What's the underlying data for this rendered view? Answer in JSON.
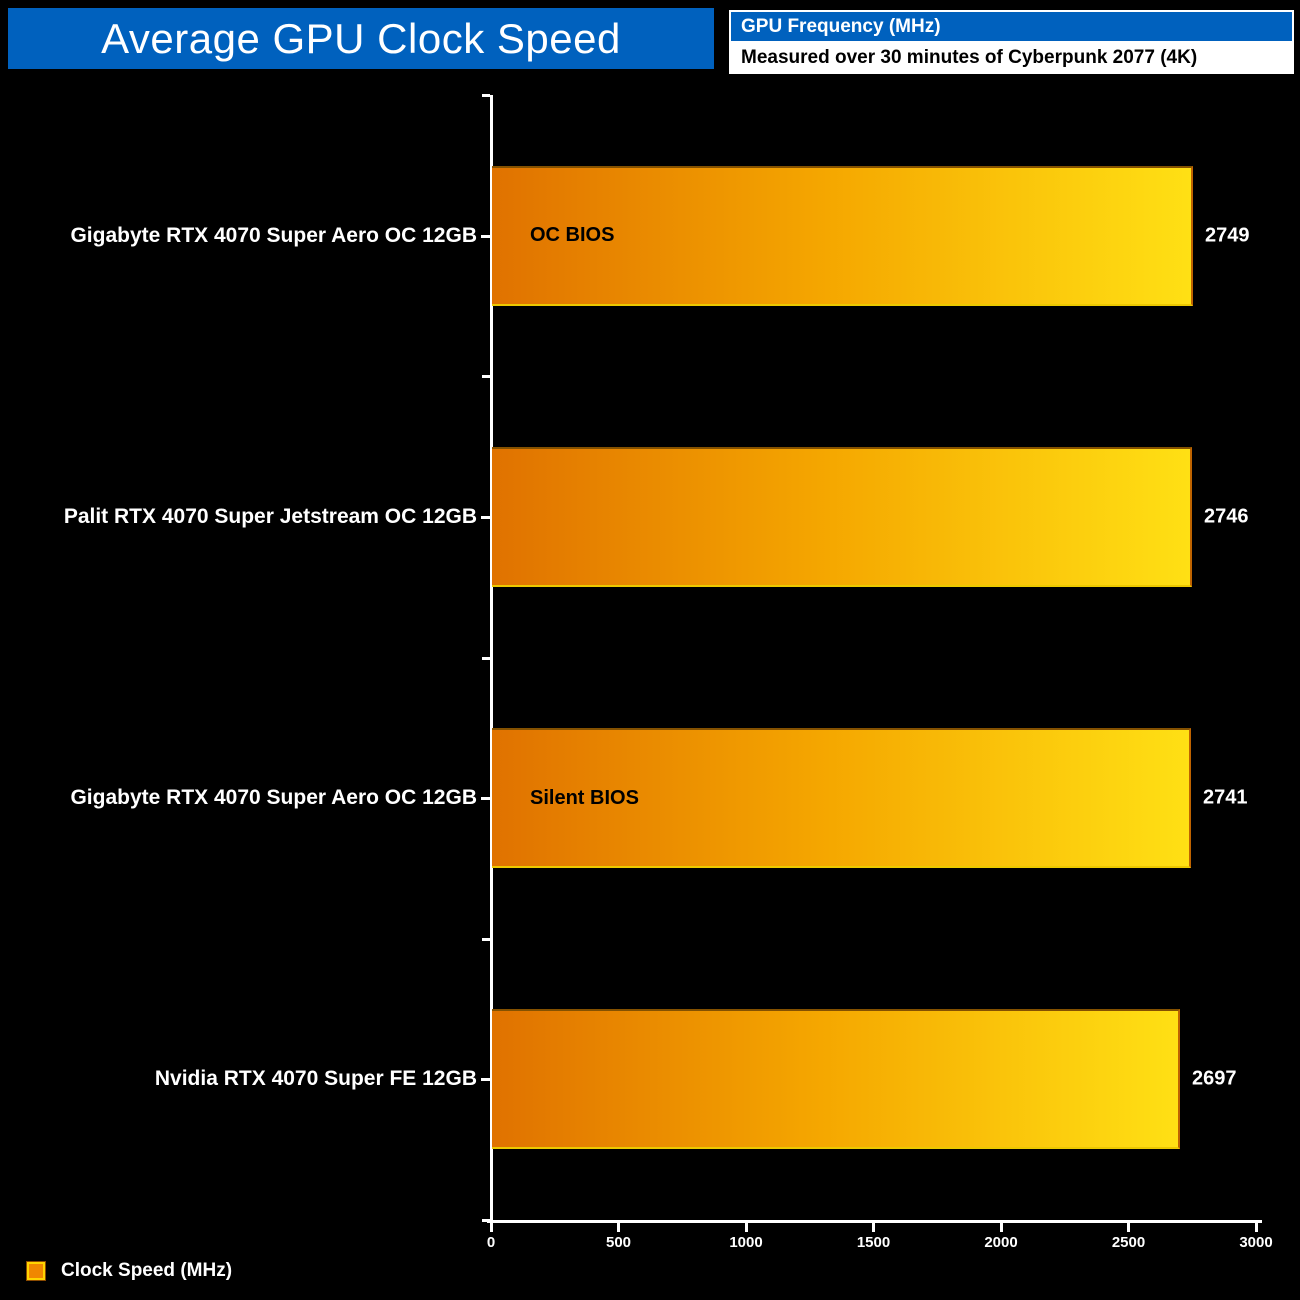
{
  "header": {
    "title": "Average GPU Clock Speed",
    "metric": "GPU Frequency (MHz)",
    "subtitle": "Measured over 30 minutes of Cyberpunk 2077 (4K)"
  },
  "legend": {
    "label": "Clock Speed (MHz)"
  },
  "colors": {
    "accent_blue": "#0061BE",
    "background": "#000000",
    "axis": "#FFFFFF",
    "bar_gradient_start": "#E07200",
    "bar_gradient_mid": "#F5A700",
    "bar_gradient_end": "#FFE014",
    "bar_border_top": "#845100",
    "bar_border_bottom": "#ECC900",
    "bar_border_right": "#BF6300",
    "category_text": "#FFFFFF",
    "value_text": "#FFFFFF",
    "annotation_text": "#000000"
  },
  "chart_data": {
    "type": "bar",
    "orientation": "horizontal",
    "title": "Average GPU Clock Speed",
    "subtitle": "Measured over 30 minutes of Cyberpunk 2077 (4K)",
    "metric": "GPU Frequency (MHz)",
    "categories": [
      "Gigabyte RTX 4070 Super Aero OC 12GB",
      "Palit RTX 4070 Super Jetstream OC 12GB",
      "Gigabyte RTX 4070 Super Aero OC 12GB",
      "Nvidia RTX 4070 Super FE 12GB"
    ],
    "values": [
      2749,
      2746,
      2741,
      2697
    ],
    "data_labels": [
      "2749",
      "2746",
      "2741",
      "2697"
    ],
    "bar_annotations": [
      "OC BIOS",
      "",
      "Silent BIOS",
      ""
    ],
    "xlabel": "",
    "ylabel": "",
    "xlim": [
      0,
      3000
    ],
    "x_ticks": [
      0,
      500,
      1000,
      1500,
      2000,
      2500,
      3000
    ],
    "legend": [
      "Clock Speed (MHz)"
    ],
    "legend_position": "bottom-left",
    "grid": false
  }
}
